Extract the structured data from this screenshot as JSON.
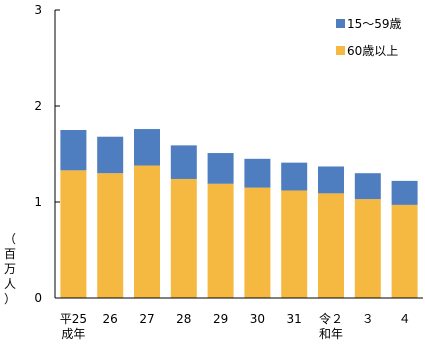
{
  "chart_data": {
    "type": "bar",
    "stacked": true,
    "ylabel": "（百万人）",
    "ylim": [
      0,
      3
    ],
    "yticks": [
      0,
      1,
      2,
      3
    ],
    "grid": false,
    "legend_position": "top-right",
    "categories": [
      [
        "平25",
        "成年"
      ],
      [
        "26"
      ],
      [
        "27"
      ],
      [
        "28"
      ],
      [
        "29"
      ],
      [
        "30"
      ],
      [
        "31"
      ],
      [
        "令２",
        "和年"
      ],
      [
        "３"
      ],
      [
        "４"
      ]
    ],
    "series": [
      {
        "name": "60歳以上",
        "color": "#F5B942",
        "values": [
          1.33,
          1.3,
          1.38,
          1.24,
          1.19,
          1.15,
          1.12,
          1.09,
          1.03,
          0.97
        ]
      },
      {
        "name": "15～59歳",
        "color": "#4E7EC0",
        "values": [
          0.42,
          0.38,
          0.38,
          0.35,
          0.32,
          0.3,
          0.29,
          0.28,
          0.27,
          0.25
        ]
      }
    ]
  }
}
